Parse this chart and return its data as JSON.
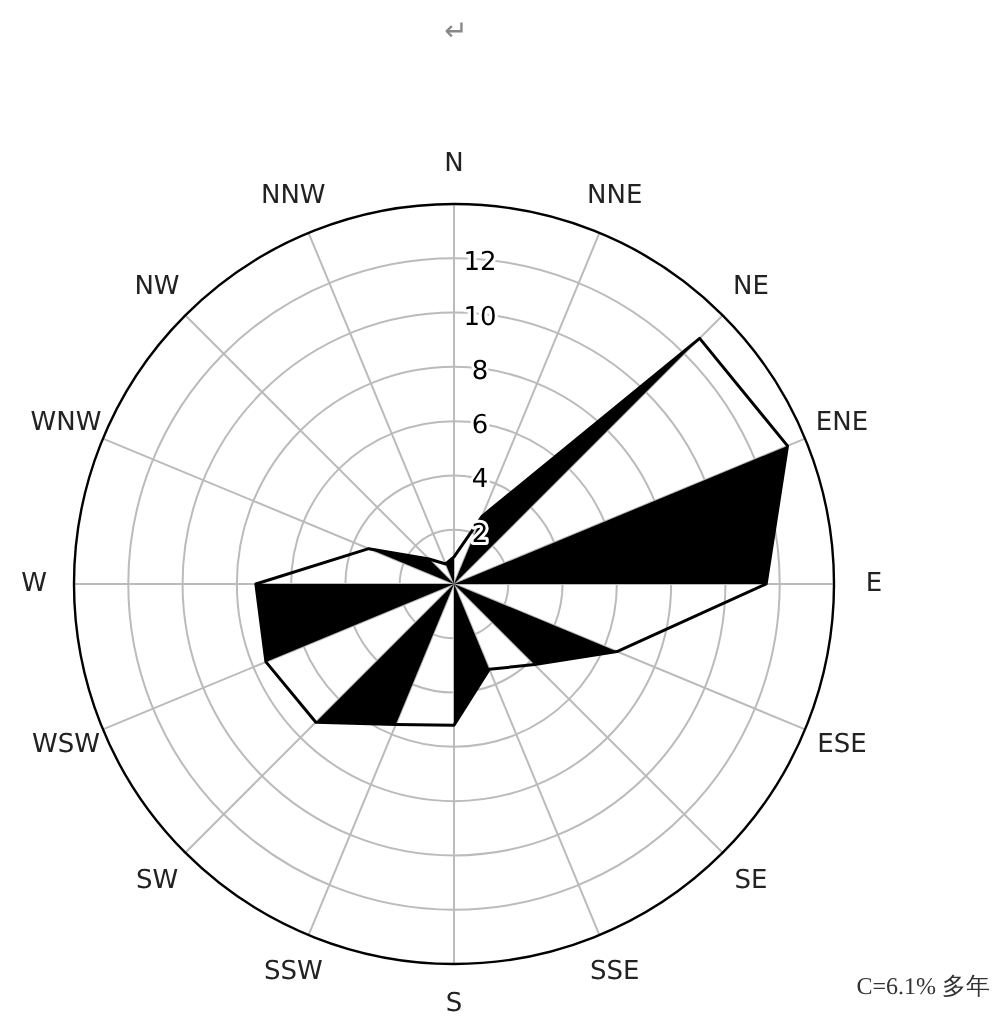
{
  "chart_data": {
    "type": "radar",
    "categories": [
      "N",
      "NNE",
      "NE",
      "ENE",
      "E",
      "ESE",
      "SE",
      "SSE",
      "S",
      "SSW",
      "SW",
      "WSW",
      "W",
      "WNW",
      "NW",
      "NNW"
    ],
    "series": [
      {
        "color": "#000000",
        "values": [
          1,
          2.7,
          12.8,
          13.3,
          11.5,
          6.5,
          4.2,
          3.4,
          5.2,
          5.6,
          7.2,
          7.5,
          7.3,
          3.4,
          1.3,
          0.8
        ]
      }
    ],
    "ylim": [
      0,
      14
    ],
    "yticks": [
      2,
      4,
      6,
      8,
      10,
      12
    ],
    "grid": true,
    "annotations": [
      "↵",
      "C=6.1%  多年"
    ]
  }
}
